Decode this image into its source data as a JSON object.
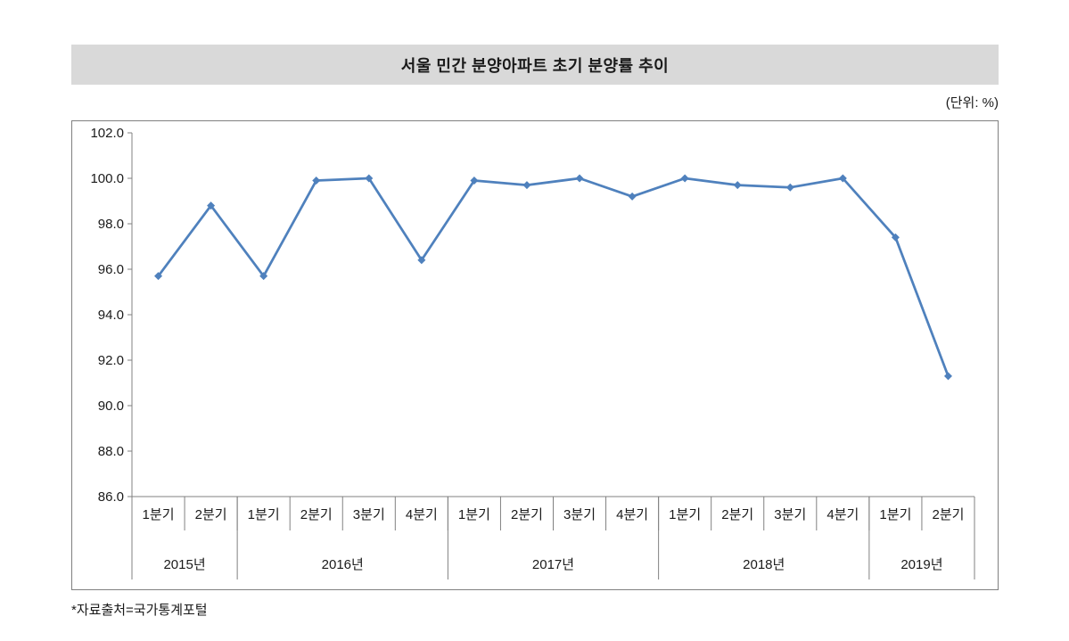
{
  "header": {
    "title": "서울 민간 분양아파트 초기 분양률 추이",
    "unit_label": "(단위: %)"
  },
  "footer": {
    "source": "*자료출처=국가통계포털"
  },
  "chart_data": {
    "type": "line",
    "title": "서울 민간 분양아파트 초기 분양률 추이",
    "unit": "%",
    "categories": [
      "1분기",
      "2분기",
      "1분기",
      "2분기",
      "3분기",
      "4분기",
      "1분기",
      "2분기",
      "3분기",
      "4분기",
      "1분기",
      "2분기",
      "3분기",
      "4분기",
      "1분기",
      "2분기"
    ],
    "year_groups": [
      {
        "label": "2015년",
        "count": 2
      },
      {
        "label": "2016년",
        "count": 4
      },
      {
        "label": "2017년",
        "count": 4
      },
      {
        "label": "2018년",
        "count": 4
      },
      {
        "label": "2019년",
        "count": 2
      }
    ],
    "values": [
      95.7,
      98.8,
      95.7,
      99.9,
      100.0,
      96.4,
      99.9,
      99.7,
      100.0,
      99.2,
      100.0,
      99.7,
      99.6,
      100.0,
      97.4,
      91.3
    ],
    "ylim": [
      86.0,
      102.0
    ],
    "yticks": [
      86.0,
      88.0,
      90.0,
      92.0,
      94.0,
      96.0,
      98.0,
      100.0,
      102.0
    ],
    "grid": false,
    "legend": "none",
    "series_color": "#4F81BD",
    "axis_color": "#808080",
    "marker": "diamond"
  }
}
